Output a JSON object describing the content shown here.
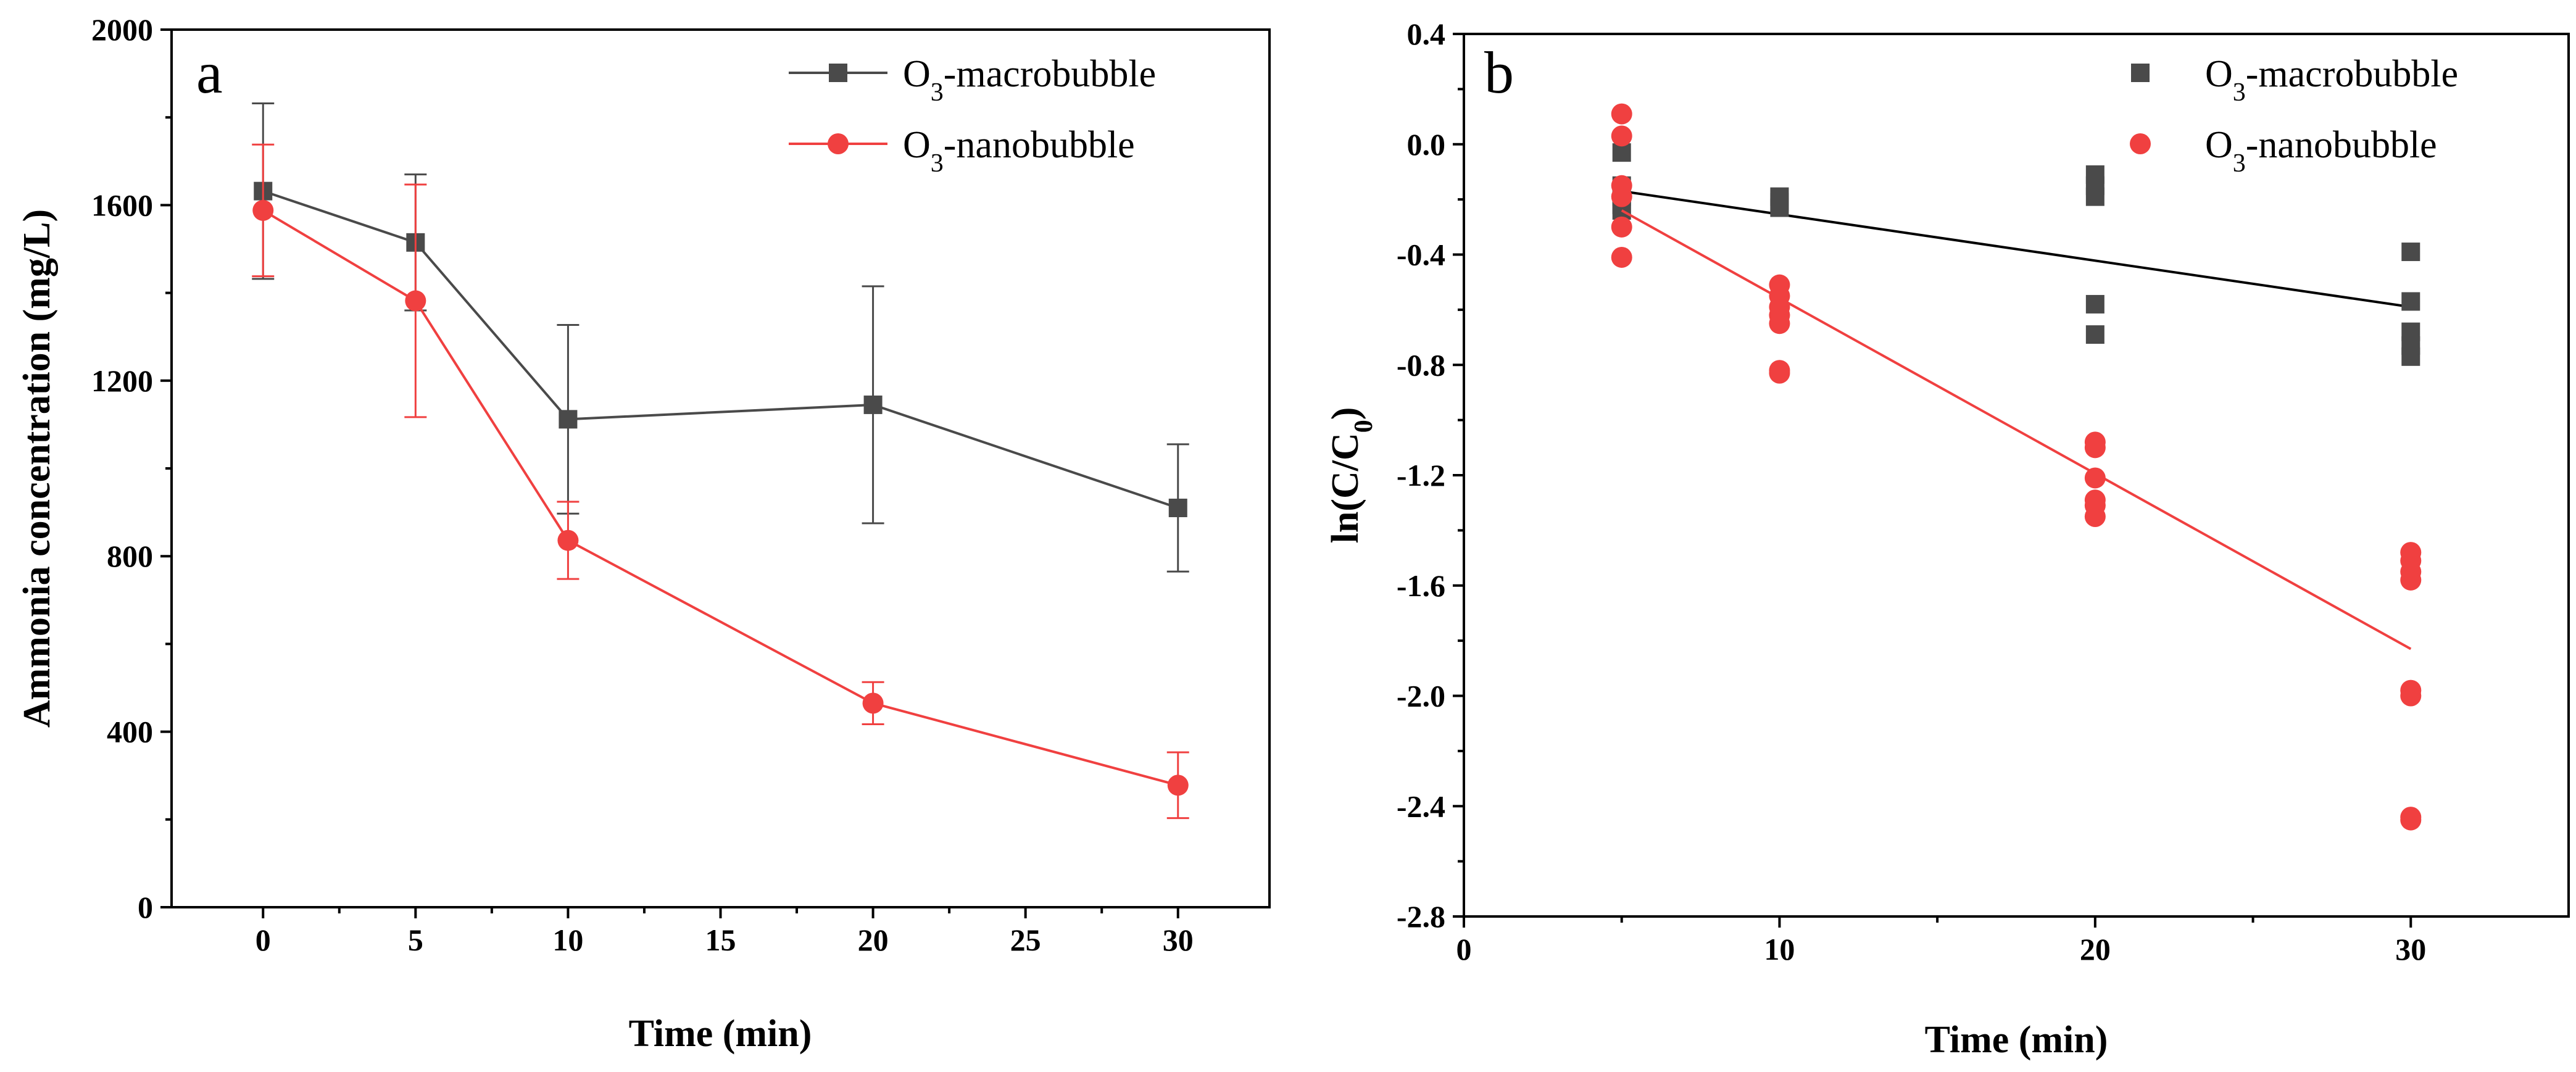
{
  "chart_data": [
    {
      "type": "line",
      "panel_label": "a",
      "title": "",
      "xlabel": "Time (min)",
      "ylabel": "Ammonia concentration (mg/L)",
      "xlim": [
        -3,
        33
      ],
      "ylim": [
        0,
        2000
      ],
      "xticks": [
        0,
        5,
        10,
        15,
        20,
        25,
        30
      ],
      "yticks": [
        0,
        400,
        800,
        1200,
        1600,
        2000
      ],
      "legend_position": "top-right",
      "series": [
        {
          "name": "O3-macrobubble",
          "legend_main": "O",
          "legend_sub": "3",
          "legend_rest": "-macrobubble",
          "color": "#4a4a4a",
          "marker": "square",
          "x": [
            0,
            5,
            10,
            20,
            30
          ],
          "y": [
            1632,
            1515,
            1112,
            1145,
            910
          ],
          "err": [
            200,
            155,
            215,
            270,
            145
          ]
        },
        {
          "name": "O3-nanobubble",
          "legend_main": "O",
          "legend_sub": "3",
          "legend_rest": "-nanobubble",
          "color": "#f04040",
          "marker": "circle",
          "x": [
            0,
            5,
            10,
            20,
            30
          ],
          "y": [
            1588,
            1382,
            836,
            465,
            278
          ],
          "err": [
            150,
            265,
            88,
            48,
            75
          ]
        }
      ]
    },
    {
      "type": "scatter",
      "panel_label": "b",
      "title": "",
      "xlabel": "Time (min)",
      "ylabel": "ln(C/C0)",
      "ylabel_parts": [
        "ln(C/C",
        "0",
        ")"
      ],
      "xlim": [
        0,
        35
      ],
      "ylim": [
        -2.8,
        0.4
      ],
      "xticks": [
        0,
        10,
        20,
        30
      ],
      "yticks": [
        -2.8,
        -2.4,
        -2.0,
        -1.6,
        -1.2,
        -0.8,
        -0.4,
        0.0,
        0.4
      ],
      "ytick_labels": [
        "-2.8",
        "-2.4",
        "-2.0",
        "-1.6",
        "-1.2",
        "-0.8",
        "-0.4",
        "0.0",
        "0.4"
      ],
      "legend_position": "top-right",
      "series": [
        {
          "name": "O3-macrobubble",
          "legend_main": "O",
          "legend_sub": "3",
          "legend_rest": "-macrobubble",
          "color": "#4a4a4a",
          "marker": "square",
          "x": [
            5,
            5,
            5,
            5,
            5,
            10,
            10,
            10,
            20,
            20,
            20,
            20,
            20,
            30,
            30,
            30,
            30,
            30
          ],
          "y": [
            -0.03,
            -0.15,
            -0.19,
            -0.22,
            -0.24,
            -0.19,
            -0.21,
            -0.23,
            -0.11,
            -0.15,
            -0.19,
            -0.58,
            -0.69,
            -0.39,
            -0.57,
            -0.68,
            -0.73,
            -0.77
          ],
          "fit": {
            "x": [
              5,
              30
            ],
            "y": [
              -0.17,
              -0.59
            ]
          }
        },
        {
          "name": "O3-nanobubble",
          "legend_main": "O",
          "legend_sub": "3",
          "legend_rest": "-nanobubble",
          "color": "#f04040",
          "marker": "circle",
          "x": [
            5,
            5,
            5,
            5,
            5,
            5,
            10,
            10,
            10,
            10,
            10,
            10,
            10,
            20,
            20,
            20,
            20,
            20,
            20,
            30,
            30,
            30,
            30,
            30,
            30,
            30,
            30
          ],
          "y": [
            0.11,
            0.03,
            -0.15,
            -0.19,
            -0.3,
            -0.41,
            -0.51,
            -0.55,
            -0.59,
            -0.62,
            -0.65,
            -0.82,
            -0.83,
            -1.08,
            -1.1,
            -1.21,
            -1.29,
            -1.31,
            -1.35,
            -1.48,
            -1.51,
            -1.55,
            -1.58,
            -1.98,
            -2.0,
            -2.44,
            -2.45
          ],
          "fit": {
            "x": [
              5,
              30
            ],
            "y": [
              -0.24,
              -1.83
            ]
          }
        }
      ]
    }
  ]
}
